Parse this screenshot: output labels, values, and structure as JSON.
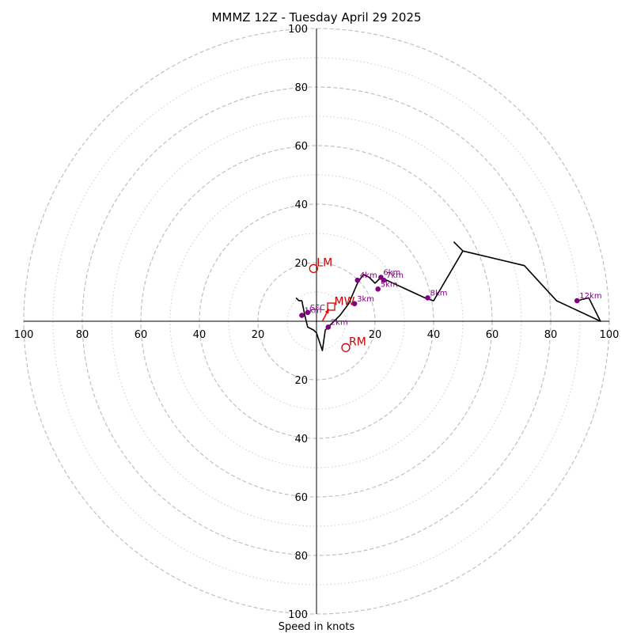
{
  "chart_data": {
    "type": "hodograph",
    "title": "MMMZ 12Z - Tuesday April 29 2025",
    "xlabel": "Speed in knots",
    "rings": {
      "major": [
        20,
        40,
        60,
        80,
        100
      ],
      "minor": [
        10,
        30,
        50,
        70,
        90
      ],
      "max": 100
    },
    "x_tick_labels": [
      "100",
      "80",
      "60",
      "40",
      "20",
      "20",
      "40",
      "60",
      "80",
      "100"
    ],
    "x_tick_values": [
      -100,
      -80,
      -60,
      -40,
      -20,
      20,
      40,
      60,
      80,
      100
    ],
    "y_tick_labels": [
      "100",
      "80",
      "60",
      "40",
      "20",
      "20",
      "40",
      "60",
      "80",
      "100"
    ],
    "y_tick_values": [
      100,
      80,
      60,
      40,
      20,
      -20,
      -40,
      -60,
      -80,
      -100
    ],
    "wind_profile": {
      "color": "#000000",
      "points": [
        [
          -7,
          8
        ],
        [
          -6,
          7
        ],
        [
          -5,
          7
        ],
        [
          -4,
          2
        ],
        [
          -3,
          -2
        ],
        [
          -1,
          -3
        ],
        [
          0,
          -4
        ],
        [
          2,
          -10
        ],
        [
          3,
          -3
        ],
        [
          5,
          -1
        ],
        [
          8,
          2
        ],
        [
          11,
          6
        ],
        [
          14,
          13
        ],
        [
          16,
          16
        ],
        [
          18,
          15
        ],
        [
          20,
          13
        ],
        [
          22,
          15
        ],
        [
          24,
          14
        ],
        [
          37,
          8
        ],
        [
          40,
          7
        ],
        [
          50,
          24
        ],
        [
          47,
          27
        ],
        [
          50,
          24
        ],
        [
          71,
          19
        ],
        [
          82,
          7
        ],
        [
          97,
          0
        ],
        [
          93,
          8
        ],
        [
          89,
          7
        ]
      ]
    },
    "height_markers": {
      "color": "#800080",
      "points": [
        {
          "label": "SFC",
          "u": -3,
          "v": 3
        },
        {
          "label": "1km",
          "u": -5,
          "v": 2
        },
        {
          "label": "2km",
          "u": 4,
          "v": -2
        },
        {
          "label": "3km",
          "u": 13,
          "v": 6
        },
        {
          "label": "4km",
          "u": 14,
          "v": 14
        },
        {
          "label": "5km",
          "u": 21,
          "v": 11
        },
        {
          "label": "6km",
          "u": 22,
          "v": 15
        },
        {
          "label": "7km",
          "u": 23,
          "v": 14
        },
        {
          "label": "8km",
          "u": 38,
          "v": 8
        },
        {
          "label": "12km",
          "u": 89,
          "v": 7
        }
      ]
    },
    "storm_motion": {
      "color": "#cc0000",
      "rm": {
        "label": "RM",
        "u": 10,
        "v": -9
      },
      "lm": {
        "label": "LM",
        "u": -1,
        "v": 18
      },
      "mw": {
        "label": "MW",
        "u": 5,
        "v": 5
      },
      "arrow": {
        "from": [
          2,
          0
        ],
        "to": [
          5,
          5
        ]
      }
    }
  }
}
